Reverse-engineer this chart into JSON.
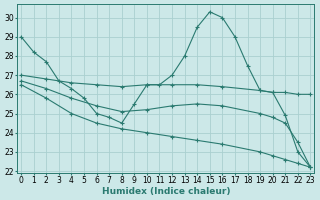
{
  "xlabel": "Humidex (Indice chaleur)",
  "bg_color": "#cce8e8",
  "grid_color": "#aad0d0",
  "line_color": "#2a7a70",
  "spine_color": "#2a7a70",
  "xlim": [
    -0.3,
    23.3
  ],
  "ylim": [
    21.9,
    30.7
  ],
  "yticks": [
    22,
    23,
    24,
    25,
    26,
    27,
    28,
    29,
    30
  ],
  "xticks": [
    0,
    1,
    2,
    3,
    4,
    5,
    6,
    7,
    8,
    9,
    10,
    11,
    12,
    13,
    14,
    15,
    16,
    17,
    18,
    19,
    20,
    21,
    22,
    23
  ],
  "lines": [
    {
      "x": [
        0,
        1,
        2,
        3,
        4,
        5,
        6,
        7,
        8,
        9,
        10,
        11,
        12,
        13,
        14,
        15,
        16,
        17,
        18,
        19,
        20,
        21,
        22,
        23
      ],
      "y": [
        29.0,
        28.2,
        27.7,
        26.7,
        26.3,
        25.8,
        25.0,
        24.8,
        24.5,
        25.5,
        26.5,
        26.5,
        27.0,
        28.0,
        29.5,
        30.3,
        30.0,
        29.0,
        27.5,
        26.2,
        26.1,
        24.9,
        23.0,
        22.2
      ]
    },
    {
      "x": [
        0,
        2,
        4,
        6,
        8,
        10,
        12,
        14,
        16,
        19,
        20,
        21,
        22,
        23
      ],
      "y": [
        27.0,
        26.8,
        26.6,
        26.5,
        26.4,
        26.5,
        26.5,
        26.5,
        26.4,
        26.2,
        26.1,
        26.1,
        26.0,
        26.0
      ]
    },
    {
      "x": [
        0,
        2,
        4,
        6,
        8,
        10,
        12,
        14,
        16,
        19,
        20,
        21,
        22,
        23
      ],
      "y": [
        26.7,
        26.3,
        25.8,
        25.4,
        25.1,
        25.2,
        25.4,
        25.5,
        25.4,
        25.0,
        24.8,
        24.5,
        23.5,
        22.2
      ]
    },
    {
      "x": [
        0,
        2,
        4,
        6,
        8,
        10,
        12,
        14,
        16,
        19,
        20,
        21,
        22,
        23
      ],
      "y": [
        26.5,
        25.8,
        25.0,
        24.5,
        24.2,
        24.0,
        23.8,
        23.6,
        23.4,
        23.0,
        22.8,
        22.6,
        22.4,
        22.2
      ]
    }
  ]
}
